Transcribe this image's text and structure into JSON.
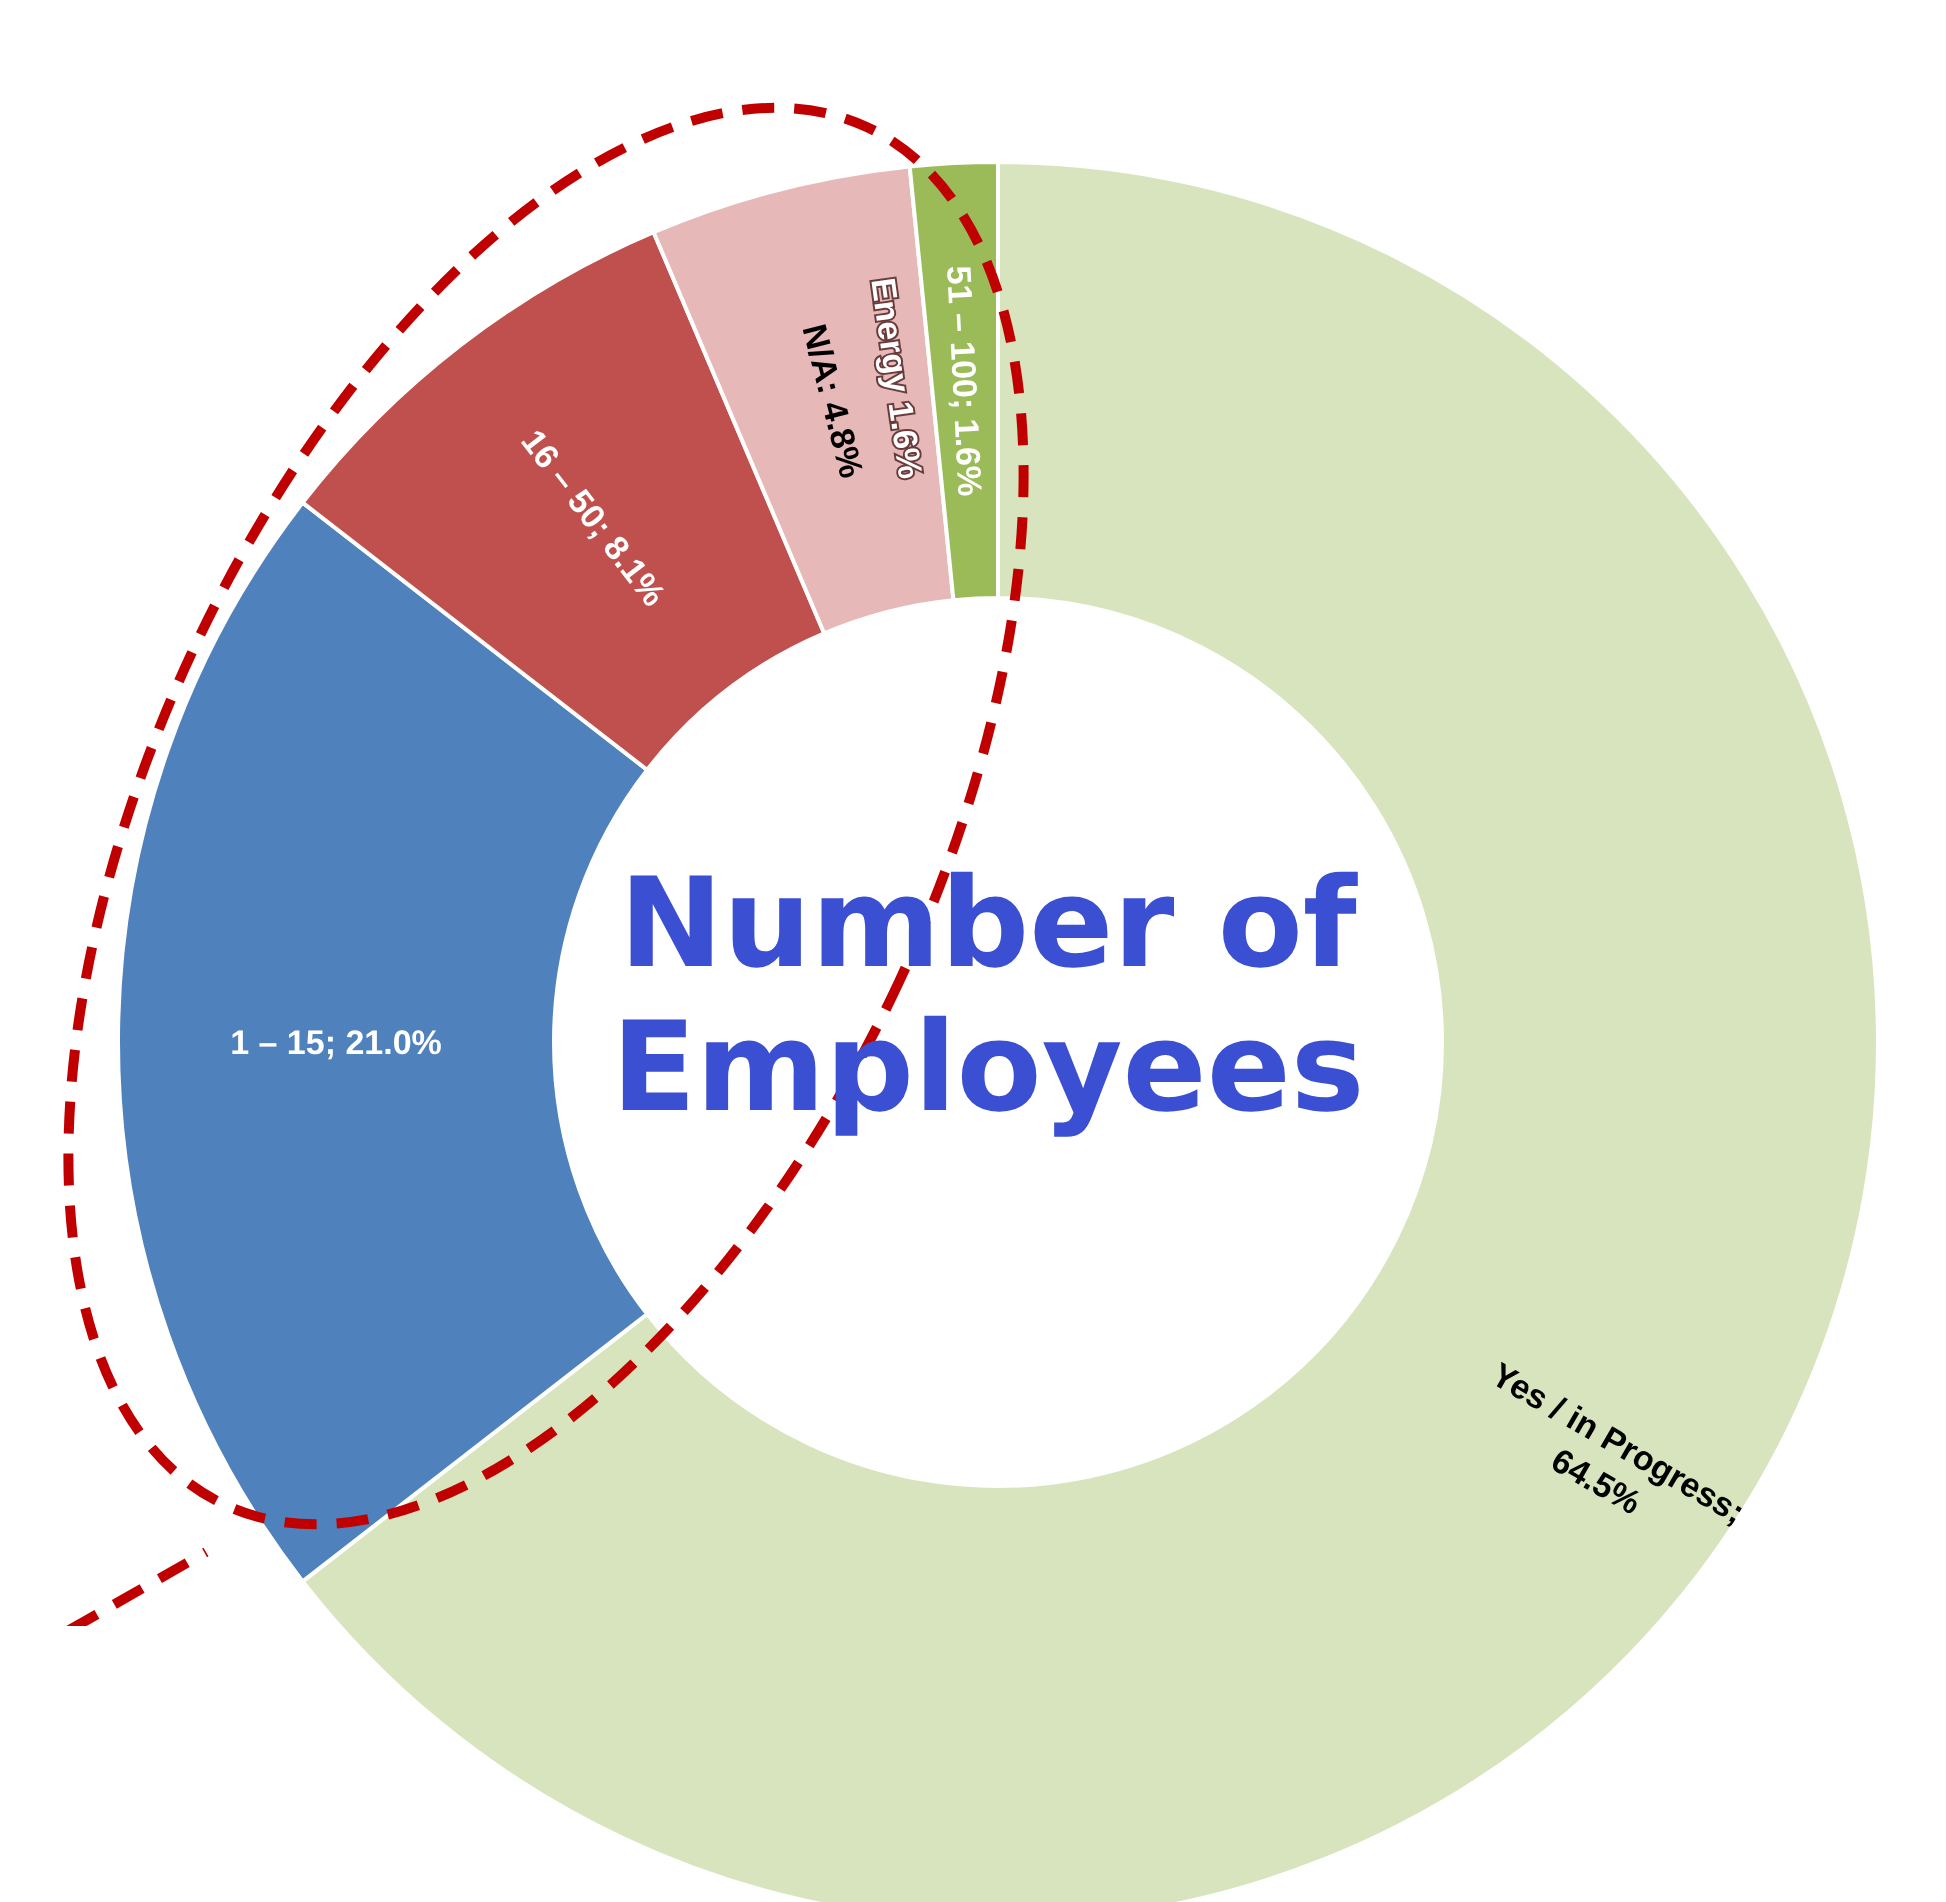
{
  "chart_data": {
    "type": "donut",
    "title": "Number of Employees",
    "categories": [
      "Yes / in Progress",
      "1 – 15",
      "16 – 50",
      "N/A",
      "51 – 100"
    ],
    "values": [
      64.5,
      21.0,
      8.1,
      4.8,
      1.6
    ],
    "value_labels": [
      "; 64.5%",
      "; 21.0%",
      "; 8.1%",
      ": 4.8%",
      "; 1.6%"
    ],
    "colors": [
      "#d7e4bd",
      "#4f81bd",
      "#c0504d",
      "#e6b9b8",
      "#9bbb59"
    ],
    "annotations": [
      "Energy 1.6%"
    ]
  }
}
